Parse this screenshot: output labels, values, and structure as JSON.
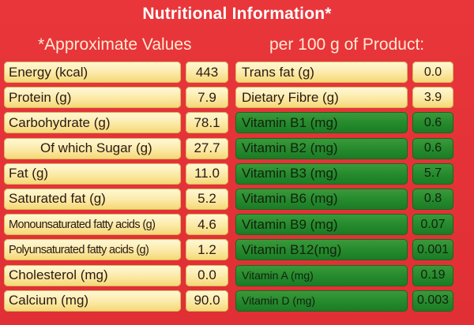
{
  "title": "Nutritional Information*",
  "subtitle_left": "*Approximate Values",
  "subtitle_right": "per 100 g of Product:",
  "left_rows": [
    {
      "label": "Energy (kcal)",
      "value": "443"
    },
    {
      "label": "Protein (g)",
      "value": "7.9"
    },
    {
      "label": "Carbohydrate (g)",
      "value": "78.1"
    },
    {
      "label": "Of which Sugar (g)",
      "value": "27.7"
    },
    {
      "label": "Fat (g)",
      "value": "11.0"
    },
    {
      "label": "Saturated fat (g)",
      "value": "5.2"
    },
    {
      "label": "Monounsaturated fatty acids (g)",
      "value": "4.6"
    },
    {
      "label": "Polyunsaturated fatty acids (g)",
      "value": "1.2"
    },
    {
      "label": "Cholesterol (mg)",
      "value": "0.0"
    },
    {
      "label": "Calcium  (mg)",
      "value": "90.0"
    }
  ],
  "right_rows": [
    {
      "label": "Trans fat (g)",
      "value": "0.0"
    },
    {
      "label": "Dietary Fibre (g)",
      "value": "3.9"
    },
    {
      "label": "Vitamin B1 (mg)",
      "value": "0.6"
    },
    {
      "label": "Vitamin B2 (mg)",
      "value": "0.6"
    },
    {
      "label": "Vitamin B3 (mg)",
      "value": "5.7"
    },
    {
      "label": "Vitamin B6 (mg)",
      "value": "0.8"
    },
    {
      "label": "Vitamin B9 (mg)",
      "value": "0.07"
    },
    {
      "label": "Vitamin B12(mg)",
      "value": "0.001"
    },
    {
      "label": "Vitamin A (mg)",
      "value": "0.19"
    },
    {
      "label": "Vitamin D (mg)",
      "value": "0.003"
    }
  ],
  "colors": {
    "background": "#e63136",
    "cream": "#fbe9a6",
    "green": "#248a2c"
  }
}
